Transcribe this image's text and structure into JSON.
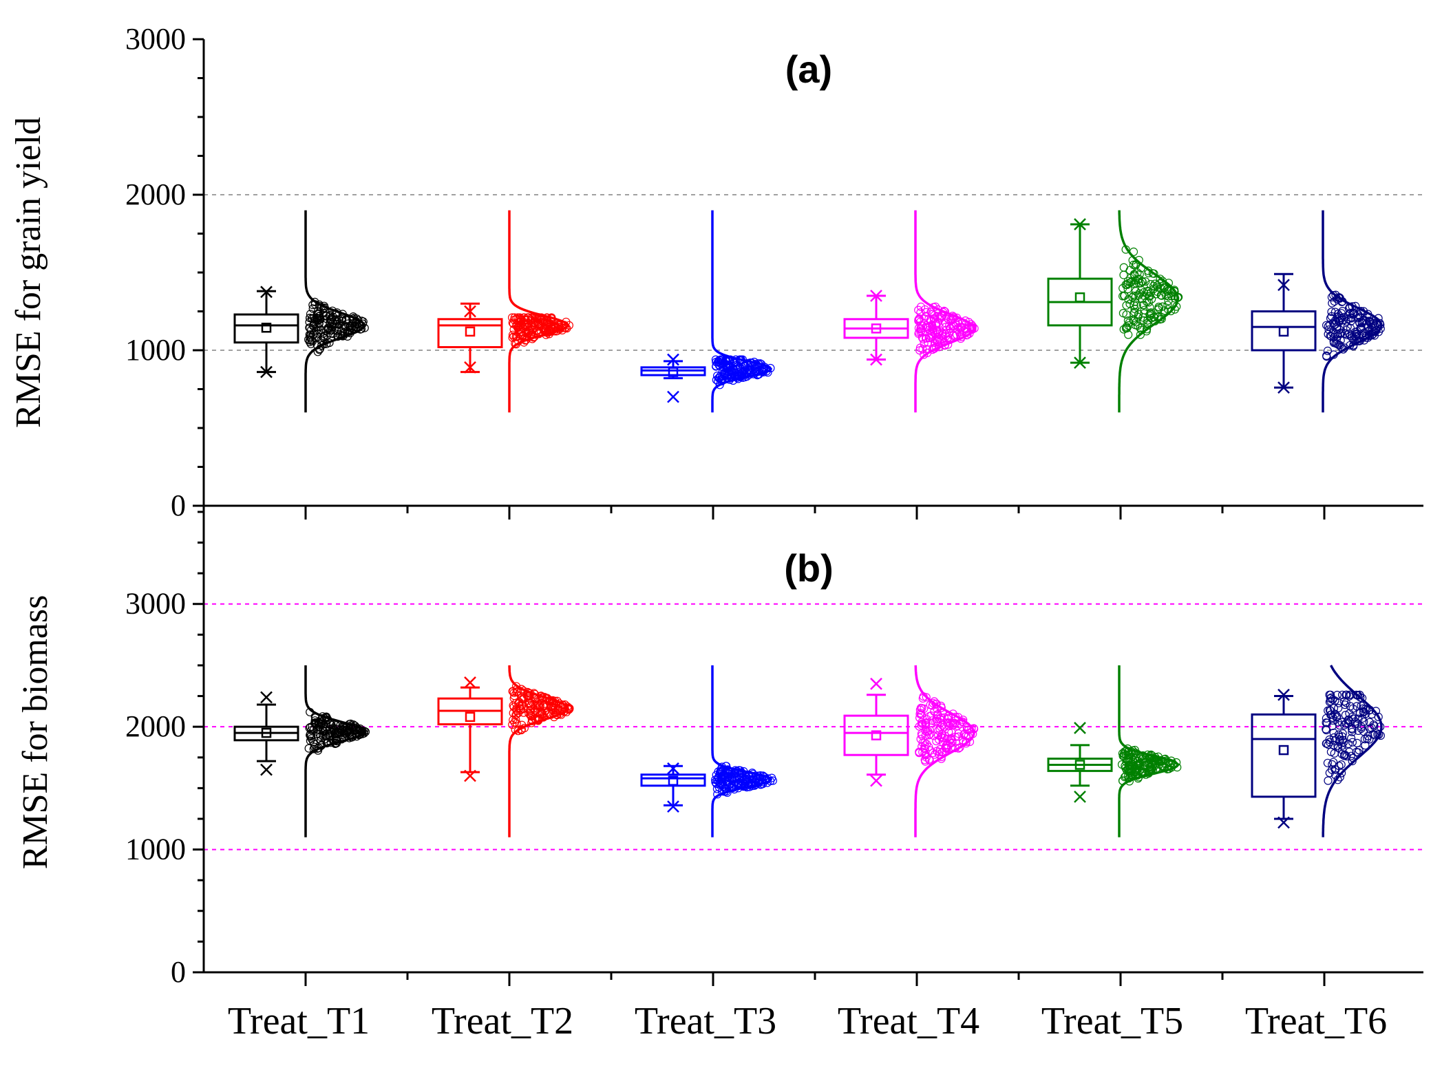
{
  "chart_data": [
    {
      "panel": "a",
      "type": "box",
      "title": "(a)",
      "ylabel": "RMSE for grain yield",
      "xlabel": "",
      "ylim": [
        0,
        3000
      ],
      "yticks": [
        0,
        1000,
        2000,
        3000
      ],
      "gridlines": [
        1000,
        2000
      ],
      "gridline_color": "#a0a0a0",
      "categories": [
        "Treat_T1",
        "Treat_T2",
        "Treat_T3",
        "Treat_T4",
        "Treat_T5",
        "Treat_T6"
      ],
      "series": [
        {
          "name": "Treat_T1",
          "color": "#000000",
          "min": 860,
          "q1": 1050,
          "median": 1160,
          "q3": 1230,
          "max": 1380,
          "mean": 1145,
          "outliers": [
            1375,
            860
          ],
          "dist_range": [
            600,
            1900
          ],
          "peak": 1160,
          "spread": 80,
          "pts_low": 870,
          "pts_high": 1310
        },
        {
          "name": "Treat_T2",
          "color": "#ff0000",
          "min": 860,
          "q1": 1020,
          "median": 1160,
          "q3": 1200,
          "max": 1300,
          "mean": 1120,
          "outliers": [
            1250,
            890
          ],
          "dist_range": [
            600,
            1900
          ],
          "peak": 1160,
          "spread": 60,
          "pts_low": 850,
          "pts_high": 1210
        },
        {
          "name": "Treat_T3",
          "color": "#0000ff",
          "min": 820,
          "q1": 840,
          "median": 870,
          "q3": 890,
          "max": 930,
          "mean": 860,
          "outliers": [
            700,
            940
          ],
          "dist_range": [
            600,
            1900
          ],
          "peak": 880,
          "spread": 50,
          "pts_low": 700,
          "pts_high": 940
        },
        {
          "name": "Treat_T4",
          "color": "#ff00ff",
          "min": 940,
          "q1": 1080,
          "median": 1140,
          "q3": 1200,
          "max": 1350,
          "mean": 1140,
          "outliers": [
            1350,
            940
          ],
          "dist_range": [
            600,
            1900
          ],
          "peak": 1140,
          "spread": 90,
          "pts_low": 940,
          "pts_high": 1360
        },
        {
          "name": "Treat_T5",
          "color": "#008000",
          "min": 920,
          "q1": 1160,
          "median": 1310,
          "q3": 1460,
          "max": 1810,
          "mean": 1340,
          "outliers": [
            1810,
            920
          ],
          "dist_range": [
            600,
            1900
          ],
          "peak": 1330,
          "spread": 160,
          "pts_low": 1100,
          "pts_high": 1850
        },
        {
          "name": "Treat_T6",
          "color": "#000080",
          "min": 760,
          "q1": 1000,
          "median": 1150,
          "q3": 1250,
          "max": 1490,
          "mean": 1120,
          "outliers": [
            1420,
            760
          ],
          "dist_range": [
            600,
            1900
          ],
          "peak": 1160,
          "spread": 110,
          "pts_low": 740,
          "pts_high": 1500
        }
      ]
    },
    {
      "panel": "b",
      "type": "box",
      "title": "(b)",
      "ylabel": "RMSE for biomass",
      "xlabel": "",
      "ylim": [
        0,
        3800
      ],
      "yticks": [
        0,
        1000,
        2000,
        3000
      ],
      "gridlines": [
        1000,
        2000,
        3000
      ],
      "gridline_color": "#ff00ff",
      "categories": [
        "Treat_T1",
        "Treat_T2",
        "Treat_T3",
        "Treat_T4",
        "Treat_T5",
        "Treat_T6"
      ],
      "series": [
        {
          "name": "Treat_T1",
          "color": "#000000",
          "min": 1720,
          "q1": 1890,
          "median": 1950,
          "q3": 2000,
          "max": 2180,
          "mean": 1950,
          "outliers": [
            2240,
            1650
          ],
          "dist_range": [
            1100,
            2500
          ],
          "peak": 1960,
          "spread": 80,
          "pts_low": 1660,
          "pts_high": 2240
        },
        {
          "name": "Treat_T2",
          "color": "#ff0000",
          "min": 1630,
          "q1": 2020,
          "median": 2130,
          "q3": 2230,
          "max": 2320,
          "mean": 2080,
          "outliers": [
            2360,
            1600
          ],
          "dist_range": [
            1100,
            2500
          ],
          "peak": 2150,
          "spread": 90,
          "pts_low": 1600,
          "pts_high": 2330
        },
        {
          "name": "Treat_T3",
          "color": "#0000ff",
          "min": 1360,
          "q1": 1520,
          "median": 1580,
          "q3": 1610,
          "max": 1680,
          "mean": 1560,
          "outliers": [
            1660,
            1350
          ],
          "dist_range": [
            1100,
            2500
          ],
          "peak": 1570,
          "spread": 60,
          "pts_low": 1450,
          "pts_high": 1680
        },
        {
          "name": "Treat_T4",
          "color": "#ff00ff",
          "min": 1610,
          "q1": 1770,
          "median": 1950,
          "q3": 2090,
          "max": 2260,
          "mean": 1930,
          "outliers": [
            2350,
            1560
          ],
          "dist_range": [
            1100,
            2500
          ],
          "peak": 1950,
          "spread": 160,
          "pts_low": 1600,
          "pts_high": 2350
        },
        {
          "name": "Treat_T5",
          "color": "#008000",
          "min": 1520,
          "q1": 1640,
          "median": 1690,
          "q3": 1740,
          "max": 1850,
          "mean": 1690,
          "outliers": [
            1990,
            1430
          ],
          "dist_range": [
            1100,
            2500
          ],
          "peak": 1690,
          "spread": 70,
          "pts_low": 1480,
          "pts_high": 1980
        },
        {
          "name": "Treat_T6",
          "color": "#000080",
          "min": 1250,
          "q1": 1430,
          "median": 1900,
          "q3": 2100,
          "max": 2250,
          "mean": 1810,
          "outliers": [
            2260,
            1220
          ],
          "dist_range": [
            1100,
            2500
          ],
          "peak": 2000,
          "spread": 250,
          "pts_low": 1200,
          "pts_high": 2260
        }
      ]
    }
  ]
}
